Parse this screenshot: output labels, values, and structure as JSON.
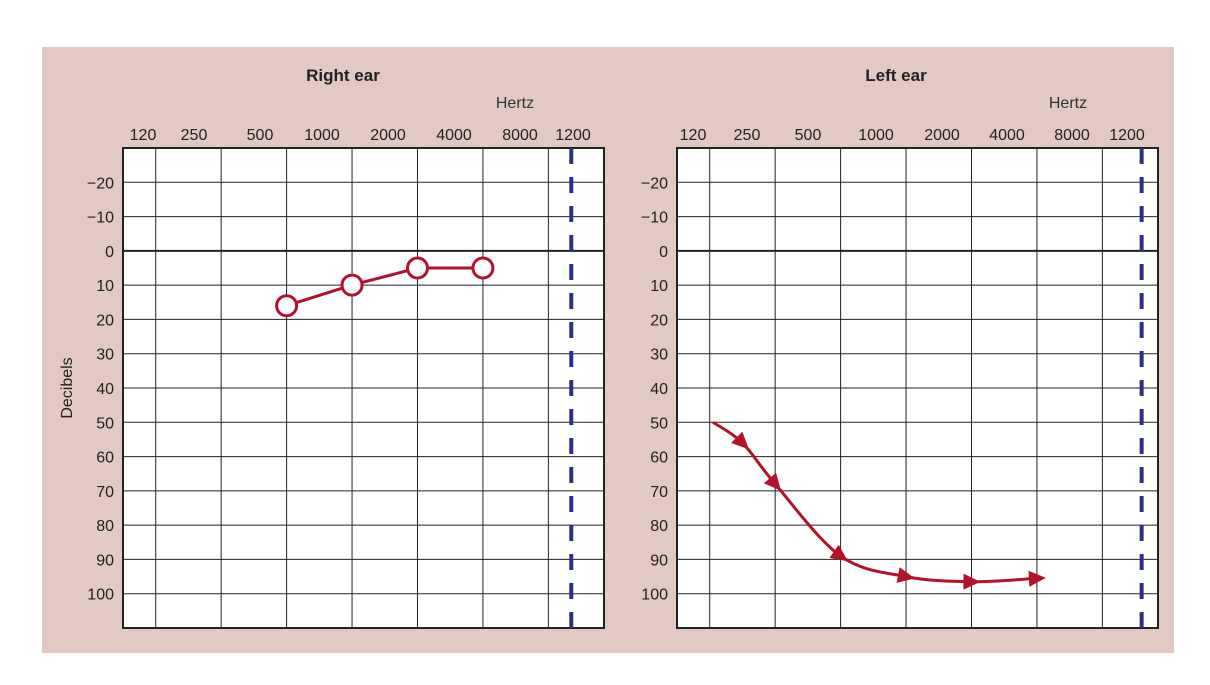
{
  "colors": {
    "panel_bg": "#e2c9c3",
    "plot_bg": "#ffffff",
    "grid": "#222222",
    "series": "#b3122a",
    "limit_line": "#2b2f8c"
  },
  "chart_data": [
    {
      "type": "line",
      "title": "Right ear",
      "xlabel": "Hertz",
      "ylabel": "Decibels",
      "x_ticks": [
        "120",
        "250",
        "500",
        "1000",
        "2000",
        "4000",
        "8000",
        "1200"
      ],
      "y_ticks": [
        -20,
        -10,
        0,
        10,
        20,
        30,
        40,
        50,
        60,
        70,
        80,
        90,
        100
      ],
      "ylim": [
        -30,
        110
      ],
      "y_inverted": true,
      "grid": true,
      "zero_line": 0,
      "limit_line_x": 6.85,
      "marker": "circle",
      "series": [
        {
          "x": [
            2.5,
            3.5,
            4.5,
            5.5
          ],
          "y": [
            16,
            10,
            5,
            5
          ]
        }
      ]
    },
    {
      "type": "line",
      "title": "Left ear",
      "xlabel": "Hertz",
      "x_ticks": [
        "120",
        "250",
        "500",
        "1000",
        "2000",
        "4000",
        "8000",
        "1200"
      ],
      "y_ticks": [
        -20,
        -10,
        0,
        10,
        20,
        30,
        40,
        50,
        60,
        70,
        80,
        90,
        100
      ],
      "ylim": [
        -30,
        110
      ],
      "y_inverted": true,
      "grid": true,
      "zero_line": 0,
      "limit_line_x": 7.1,
      "marker": "arrow",
      "series": [
        {
          "x": [
            0.55,
            1.0,
            1.5,
            2.5,
            3.5,
            4.5,
            5.5
          ],
          "y": [
            50,
            56,
            68,
            89,
            95,
            96.5,
            95.5
          ]
        }
      ]
    }
  ]
}
